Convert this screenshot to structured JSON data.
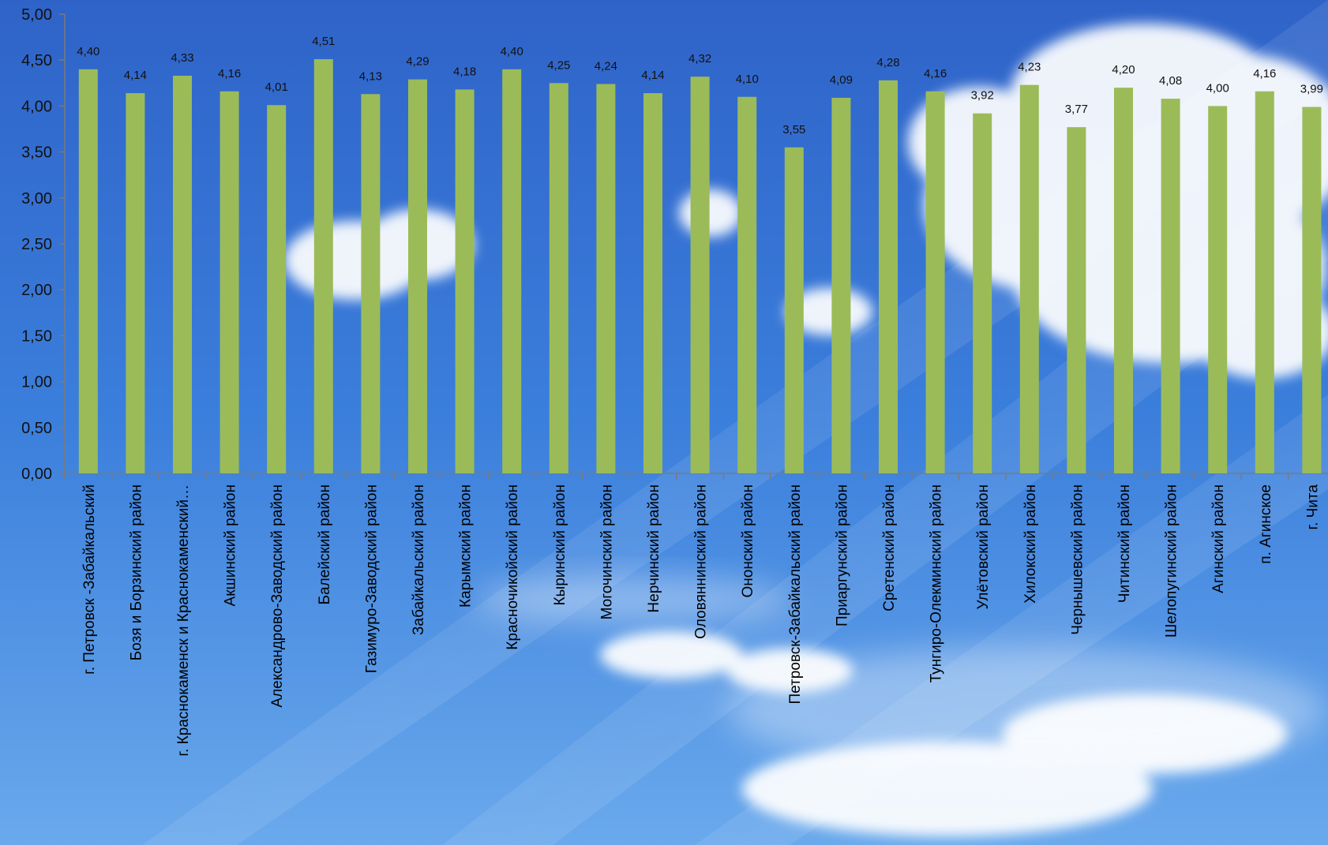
{
  "chart_data": {
    "type": "bar",
    "title": "",
    "xlabel": "",
    "ylabel": "",
    "ylim": [
      0,
      5
    ],
    "y_ticks": [
      "0,00",
      "0,50",
      "1,00",
      "1,50",
      "2,00",
      "2,50",
      "3,00",
      "3,50",
      "4,00",
      "4,50",
      "5,00"
    ],
    "y_tick_values": [
      0,
      0.5,
      1,
      1.5,
      2,
      2.5,
      3,
      3.5,
      4,
      4.5,
      5
    ],
    "grid": false,
    "legend": "none",
    "bar_color": "#9bbb59",
    "categories": [
      "г. Петровск -Забайкальский",
      "Бозя и Борзинский район",
      "г. Краснокаменск и Краснокаменский…",
      "Акшинский район",
      "Александрово-Заводский район",
      "Балейский район",
      "Газимуро-Заводский район",
      "Забайкальский район",
      "Карымский район",
      "Красночикойский район",
      "Кыринский район",
      "Могочинский район",
      "Нерчинский район",
      "Оловяннинский район",
      "Ононский район",
      "Петровск-Забайкальский район",
      "Приаргунский район",
      "Сретенский район",
      "Тунгиро-Олекминский район",
      "Улётовский район",
      "Хилокский район",
      "Чернышевский район",
      "Читинский район",
      "Шелопугинский район",
      "Агинский район",
      "п. Агинское",
      "г. Чита"
    ],
    "values": [
      4.4,
      4.14,
      4.33,
      4.16,
      4.01,
      4.51,
      4.13,
      4.29,
      4.18,
      4.4,
      4.25,
      4.24,
      4.14,
      4.32,
      4.1,
      3.55,
      4.09,
      4.28,
      4.16,
      3.92,
      4.23,
      3.77,
      4.2,
      4.08,
      4.0,
      4.16,
      3.99
    ],
    "value_labels": [
      "4,40",
      "4,14",
      "4,33",
      "4,16",
      "4,01",
      "4,51",
      "4,13",
      "4,29",
      "4,18",
      "4,40",
      "4,25",
      "4,24",
      "4,14",
      "4,32",
      "4,10",
      "3,55",
      "4,09",
      "4,28",
      "4,16",
      "3,92",
      "4,23",
      "3,77",
      "4,20",
      "4,08",
      "4,00",
      "4,16",
      "3,99"
    ]
  }
}
